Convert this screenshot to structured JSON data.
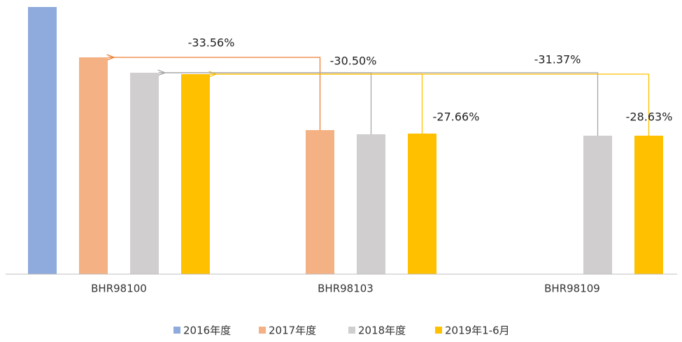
{
  "chart_data": {
    "type": "bar",
    "categories": [
      "BHR98100",
      "BHR98103",
      "BHR98109"
    ],
    "series": [
      {
        "name": "2016年度",
        "color": "#8faadc",
        "values": [
          382,
          null,
          null
        ]
      },
      {
        "name": "2017年度",
        "color": "#f4b183",
        "values": [
          310,
          206,
          null
        ]
      },
      {
        "name": "2018年度",
        "color": "#d0cece",
        "values": [
          288,
          200,
          198
        ]
      },
      {
        "name": "2019年1-6月",
        "color": "#ffc000",
        "values": [
          286,
          201,
          198
        ]
      }
    ],
    "ylim": [
      0,
      392
    ],
    "annotations": [
      "-33.56%",
      "-30.50%",
      "-27.66%",
      "-31.37%",
      "-28.63%"
    ],
    "legend": "bottom"
  }
}
